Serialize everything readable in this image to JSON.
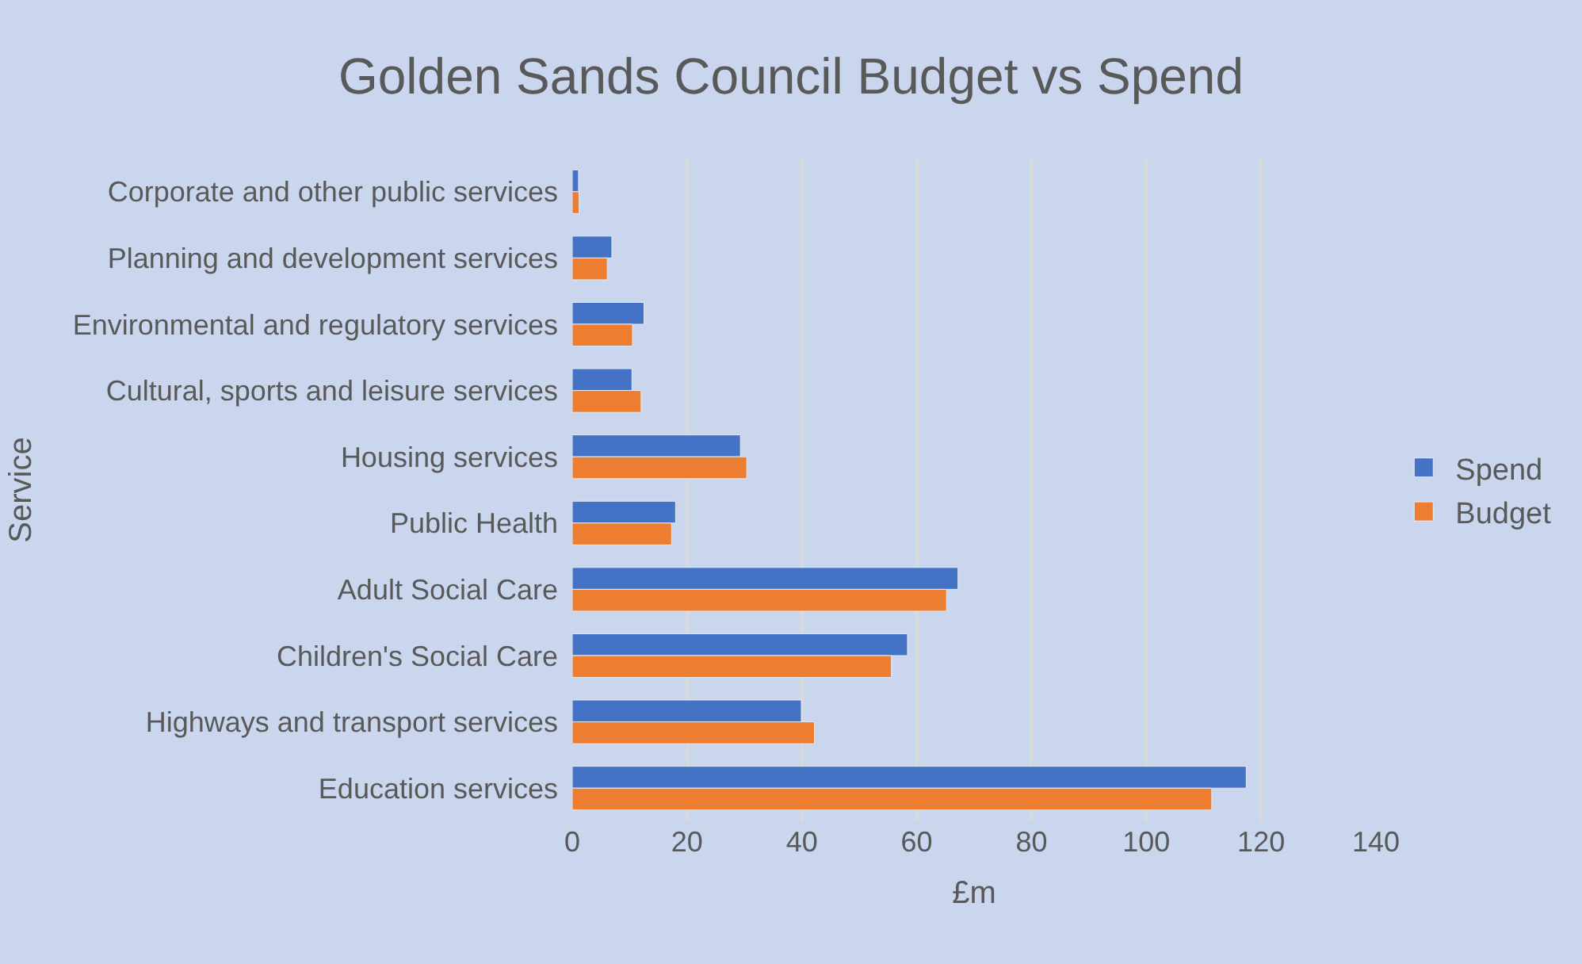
{
  "chart_data": {
    "type": "bar",
    "orientation": "horizontal",
    "title": "Golden Sands Council Budget vs Spend",
    "xlabel": "£m",
    "ylabel": "Service",
    "categories": [
      "Corporate and other public services",
      "Planning and development services",
      "Environmental and regulatory services",
      "Cultural, sports and leisure services",
      "Housing services",
      "Public Health",
      "Adult Social Care",
      "Children's Social Care",
      "Highways and transport services",
      "Education services"
    ],
    "series": [
      {
        "name": "Spend",
        "color": "#4472c4",
        "values": [
          1.1,
          6.9,
          12.5,
          10.4,
          29.3,
          18,
          67.2,
          58.4,
          39.9,
          117.4
        ]
      },
      {
        "name": "Budget",
        "color": "#ed7d31",
        "values": [
          1.2,
          6.1,
          10.5,
          12,
          30.4,
          17.3,
          65.2,
          55.6,
          42.2,
          111.4
        ]
      }
    ],
    "xlim": [
      0,
      140
    ],
    "xticks": [
      0,
      20,
      40,
      60,
      80,
      100,
      120,
      140
    ],
    "grid": "x",
    "legend": "right"
  }
}
